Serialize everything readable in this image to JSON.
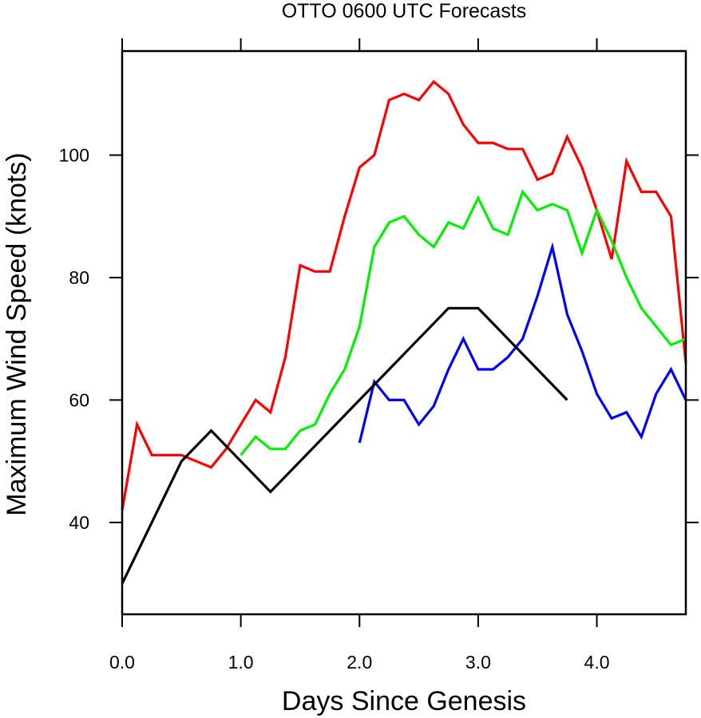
{
  "chart_data": {
    "type": "line",
    "title": "OTTO 0600 UTC Forecasts",
    "xlabel": "Days Since Genesis",
    "ylabel": "Maximum Wind Speed (knots)",
    "xlim": [
      0,
      4.75
    ],
    "ylim": [
      25,
      117
    ],
    "xticks": [
      0,
      1,
      2,
      3,
      4
    ],
    "xtick_labels": [
      "0.0",
      "1.0",
      "2.0",
      "3.0",
      "4.0"
    ],
    "yticks": [
      40,
      60,
      80,
      100
    ],
    "ytick_labels": [
      "40",
      "60",
      "80",
      "100"
    ],
    "grid": false,
    "legend": "none",
    "series": [
      {
        "color": "#ff0000",
        "x": [
          0,
          0.125,
          0.25,
          0.375,
          0.5,
          0.625,
          0.75,
          0.875,
          1.0,
          1.125,
          1.25,
          1.375,
          1.5,
          1.625,
          1.75,
          1.875,
          2.0,
          2.125,
          2.25,
          2.375,
          2.5,
          2.625,
          2.75,
          2.875,
          3.0,
          3.125,
          3.25,
          3.375,
          3.5,
          3.625,
          3.75,
          3.875,
          4.0,
          4.125,
          4.25,
          4.375,
          4.5,
          4.625,
          4.75
        ],
        "y": [
          42,
          56,
          51,
          51,
          51,
          50,
          49,
          52,
          56,
          60,
          58,
          67,
          82,
          81,
          81,
          90,
          98,
          100,
          109,
          110,
          109,
          112,
          110,
          105,
          102,
          102,
          101,
          101,
          96,
          97,
          103,
          98,
          91,
          83,
          99,
          94,
          94,
          90,
          66
        ]
      },
      {
        "color": "#00ee00",
        "x": [
          1.0,
          1.125,
          1.25,
          1.375,
          1.5,
          1.625,
          1.75,
          1.875,
          2.0,
          2.125,
          2.25,
          2.375,
          2.5,
          2.625,
          2.75,
          2.875,
          3.0,
          3.125,
          3.25,
          3.375,
          3.5,
          3.625,
          3.75,
          3.875,
          4.0,
          4.125,
          4.25,
          4.375,
          4.5,
          4.625,
          4.75
        ],
        "y": [
          51,
          54,
          52,
          52,
          55,
          56,
          61,
          65,
          72,
          85,
          89,
          90,
          87,
          85,
          89,
          88,
          93,
          88,
          87,
          94,
          91,
          92,
          91,
          84,
          91,
          86,
          80,
          75,
          72,
          69,
          70
        ]
      },
      {
        "color": "#0000ff",
        "x": [
          2.0,
          2.125,
          2.25,
          2.375,
          2.5,
          2.625,
          2.75,
          2.875,
          3.0,
          3.125,
          3.25,
          3.375,
          3.5,
          3.625,
          3.75,
          3.875,
          4.0,
          4.125,
          4.25,
          4.375,
          4.5,
          4.625,
          4.75
        ],
        "y": [
          53,
          63,
          60,
          60,
          56,
          59,
          65,
          70,
          65,
          65,
          67,
          70,
          77,
          85,
          74,
          68,
          61,
          57,
          58,
          54,
          61,
          65,
          60
        ]
      },
      {
        "color": "#000000",
        "x": [
          0,
          0.5,
          0.75,
          1.25,
          2.75,
          3.0,
          3.75
        ],
        "y": [
          30,
          50,
          55,
          45,
          75,
          75,
          60
        ]
      }
    ]
  }
}
